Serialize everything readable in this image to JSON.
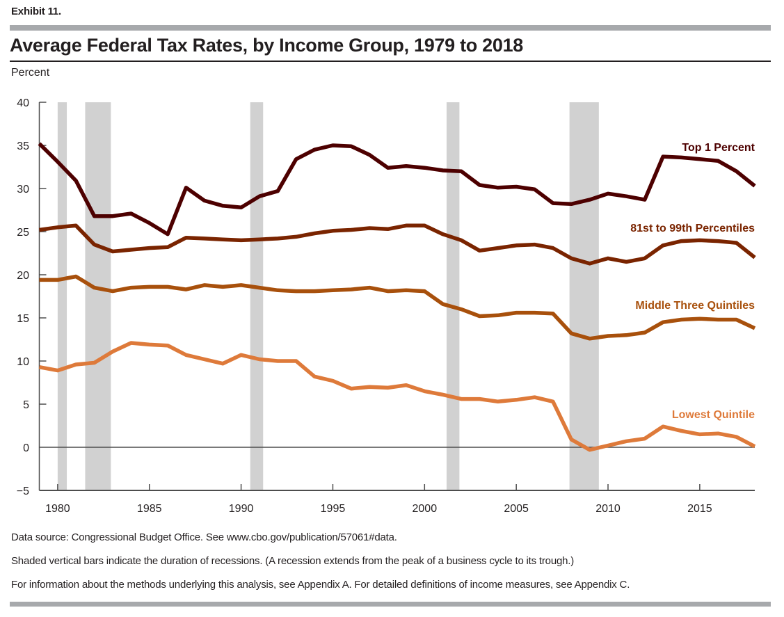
{
  "header": {
    "exhibit": "Exhibit 11.",
    "title": "Average Federal Tax Rates, by Income Group, 1979 to 2018",
    "unit_label": "Percent"
  },
  "notes": [
    "Data source: Congressional Budget Office. See www.cbo.gov/publication/57061#data.",
    "Shaded vertical bars indicate the duration of recessions. (A recession extends from the peak of a business cycle to its trough.)",
    "For information about the methods underlying this analysis, see Appendix A. For detailed definitions of income measures, see Appendix C."
  ],
  "chart_data": {
    "type": "line",
    "title": "Average Federal Tax Rates, by Income Group, 1979 to 2018",
    "xlabel": "",
    "ylabel": "Percent",
    "xlim": [
      1979,
      2018
    ],
    "ylim": [
      -5,
      40
    ],
    "x_ticks": [
      1980,
      1985,
      1990,
      1995,
      2000,
      2005,
      2010,
      2015
    ],
    "y_ticks": [
      -5,
      0,
      5,
      10,
      15,
      20,
      25,
      30,
      35,
      40
    ],
    "grid": false,
    "legend": "inline labels at right end of each line",
    "x": [
      1979,
      1980,
      1981,
      1982,
      1983,
      1984,
      1985,
      1986,
      1987,
      1988,
      1989,
      1990,
      1991,
      1992,
      1993,
      1994,
      1995,
      1996,
      1997,
      1998,
      1999,
      2000,
      2001,
      2002,
      2003,
      2004,
      2005,
      2006,
      2007,
      2008,
      2009,
      2010,
      2011,
      2012,
      2013,
      2014,
      2015,
      2016,
      2017,
      2018
    ],
    "series": [
      {
        "name": "Top 1 Percent",
        "color": "#4d0000",
        "values": [
          35.2,
          33.1,
          30.9,
          26.8,
          26.8,
          27.1,
          26.0,
          24.7,
          30.1,
          28.6,
          28.0,
          27.8,
          29.1,
          29.7,
          33.4,
          34.5,
          35.0,
          34.9,
          33.9,
          32.4,
          32.6,
          32.4,
          32.1,
          32.0,
          30.4,
          30.1,
          30.2,
          29.9,
          28.3,
          28.2,
          28.7,
          29.4,
          29.1,
          28.7,
          33.7,
          33.6,
          33.4,
          33.2,
          32.0,
          30.3
        ]
      },
      {
        "name": "81st to 99th Percentiles",
        "color": "#7a2400",
        "values": [
          25.2,
          25.5,
          25.7,
          23.5,
          22.7,
          22.9,
          23.1,
          23.2,
          24.3,
          24.2,
          24.1,
          24.0,
          24.1,
          24.2,
          24.4,
          24.8,
          25.1,
          25.2,
          25.4,
          25.3,
          25.7,
          25.7,
          24.7,
          24.0,
          22.8,
          23.1,
          23.4,
          23.5,
          23.1,
          21.9,
          21.3,
          21.9,
          21.5,
          21.9,
          23.4,
          23.9,
          24.0,
          23.9,
          23.7,
          22.0
        ]
      },
      {
        "name": "Middle Three Quintiles",
        "color": "#a8500c",
        "values": [
          19.4,
          19.4,
          19.8,
          18.5,
          18.1,
          18.5,
          18.6,
          18.6,
          18.3,
          18.8,
          18.6,
          18.8,
          18.5,
          18.2,
          18.1,
          18.1,
          18.2,
          18.3,
          18.5,
          18.1,
          18.2,
          18.1,
          16.6,
          16.0,
          15.2,
          15.3,
          15.6,
          15.6,
          15.5,
          13.2,
          12.6,
          12.9,
          13.0,
          13.3,
          14.5,
          14.8,
          14.9,
          14.8,
          14.8,
          13.8
        ]
      },
      {
        "name": "Lowest Quintile",
        "color": "#de7a3a",
        "values": [
          9.3,
          8.9,
          9.6,
          9.8,
          11.1,
          12.1,
          11.9,
          11.8,
          10.7,
          10.2,
          9.7,
          10.7,
          10.2,
          10.0,
          10.0,
          8.2,
          7.7,
          6.8,
          7.0,
          6.9,
          7.2,
          6.5,
          6.1,
          5.6,
          5.6,
          5.3,
          5.5,
          5.8,
          5.3,
          0.9,
          -0.3,
          0.2,
          0.7,
          1.0,
          2.4,
          1.9,
          1.5,
          1.6,
          1.2,
          0.1
        ]
      }
    ],
    "recessions": [
      {
        "start": 1980.0,
        "end": 1980.5
      },
      {
        "start": 1981.5,
        "end": 1982.9
      },
      {
        "start": 1990.5,
        "end": 1991.2
      },
      {
        "start": 2001.2,
        "end": 2001.9
      },
      {
        "start": 2007.9,
        "end": 2009.5
      }
    ],
    "recession_color": "#d1d1d1",
    "axis_color": "#4d4d4d"
  }
}
